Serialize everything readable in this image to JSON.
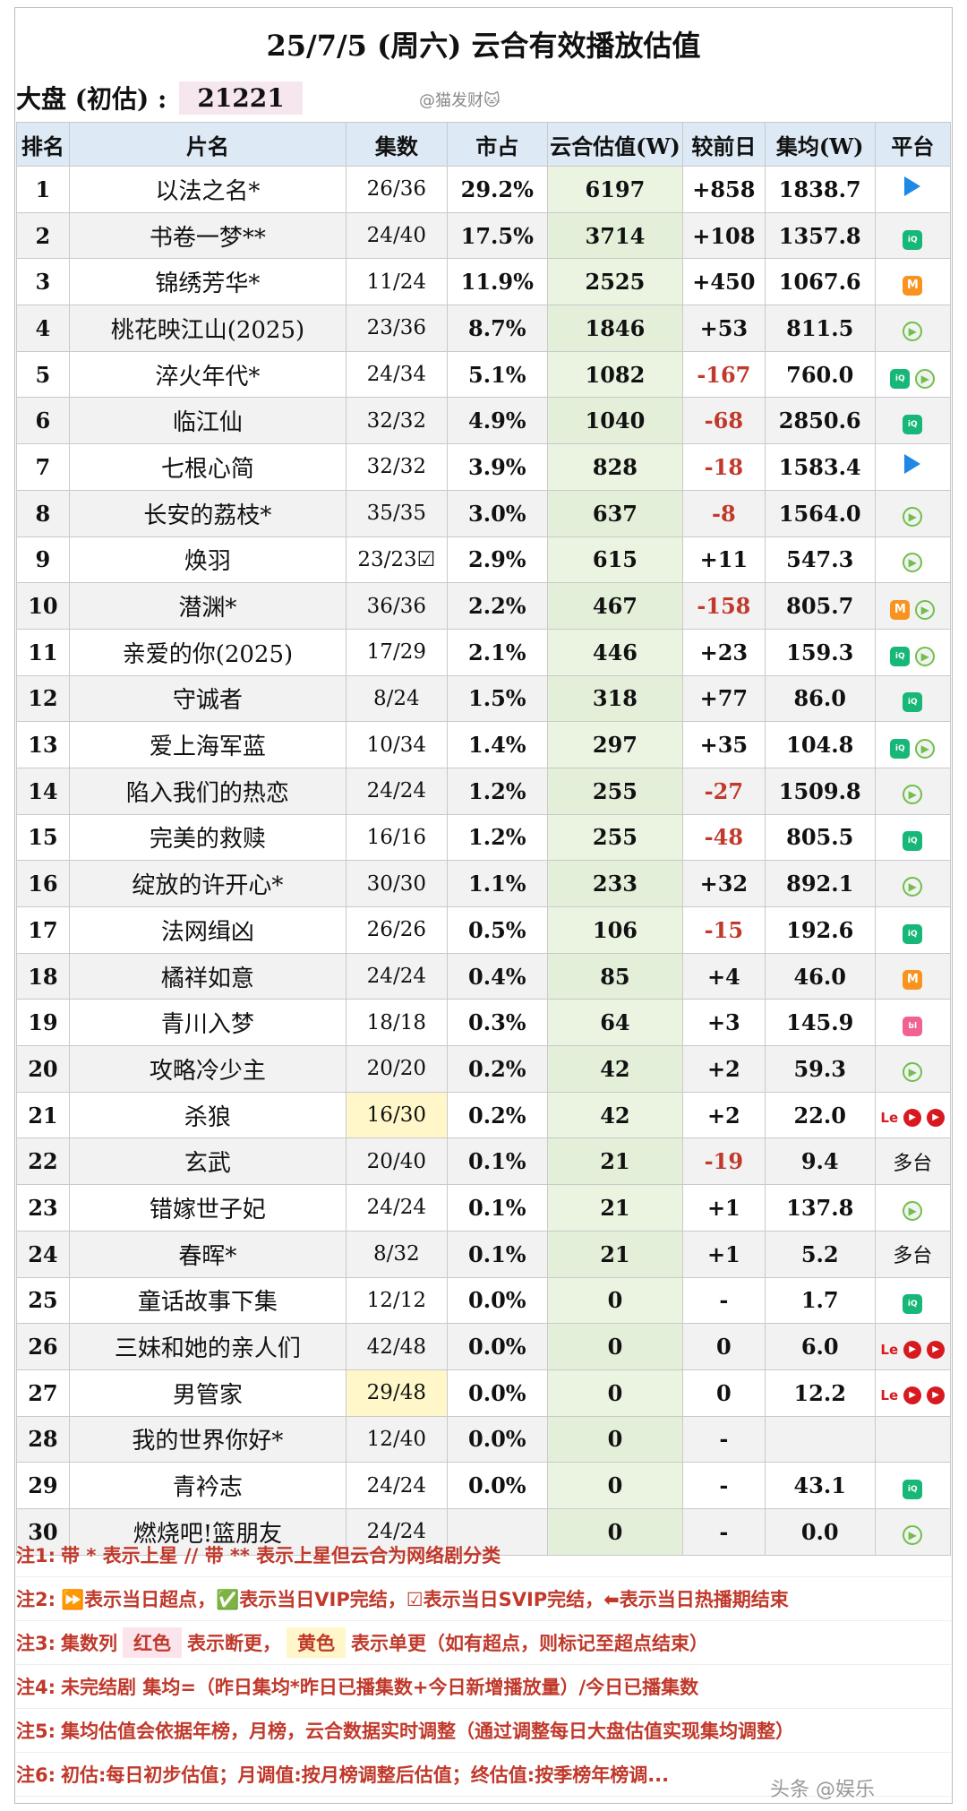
{
  "title": "25/7/5 (周六) 云合有效播放估值",
  "dapan": {
    "label": "大盘 (初估)  :",
    "value": "21221"
  },
  "watermark_top": "@猫发财🐱",
  "headers": [
    "排名",
    "片名",
    "集数",
    "市占",
    "云合估值(W)",
    "较前日",
    "集均(W)",
    "平台"
  ],
  "rows": [
    {
      "rank": "1",
      "name": "以法之名*",
      "eps": "26/36",
      "share": "29.2%",
      "est": "6197",
      "chg": "+858",
      "neg": false,
      "avg": "1838.7",
      "platforms": [
        "tencent"
      ]
    },
    {
      "rank": "2",
      "name": "书卷一梦**",
      "eps": "24/40",
      "share": "17.5%",
      "est": "3714",
      "chg": "+108",
      "neg": false,
      "avg": "1357.8",
      "platforms": [
        "iqiyi"
      ]
    },
    {
      "rank": "3",
      "name": "锦绣芳华*",
      "eps": "11/24",
      "share": "11.9%",
      "est": "2525",
      "chg": "+450",
      "neg": false,
      "avg": "1067.6",
      "platforms": [
        "mango"
      ]
    },
    {
      "rank": "4",
      "name": "桃花映江山(2025)",
      "eps": "23/36",
      "share": "8.7%",
      "est": "1846",
      "chg": "+53",
      "neg": false,
      "avg": "811.5",
      "platforms": [
        "youku"
      ]
    },
    {
      "rank": "5",
      "name": "淬火年代*",
      "eps": "24/34",
      "share": "5.1%",
      "est": "1082",
      "chg": "-167",
      "neg": true,
      "avg": "760.0",
      "platforms": [
        "iqiyi",
        "youku"
      ]
    },
    {
      "rank": "6",
      "name": "临江仙",
      "eps": "32/32",
      "share": "4.9%",
      "est": "1040",
      "chg": "-68",
      "neg": true,
      "avg": "2850.6",
      "platforms": [
        "iqiyi"
      ]
    },
    {
      "rank": "7",
      "name": "七根心简",
      "eps": "32/32",
      "share": "3.9%",
      "est": "828",
      "chg": "-18",
      "neg": true,
      "avg": "1583.4",
      "platforms": [
        "tencent"
      ]
    },
    {
      "rank": "8",
      "name": "长安的荔枝*",
      "eps": "35/35",
      "share": "3.0%",
      "est": "637",
      "chg": "-8",
      "neg": true,
      "avg": "1564.0",
      "platforms": [
        "youku"
      ]
    },
    {
      "rank": "9",
      "name": "焕羽",
      "eps": "23/23☑",
      "share": "2.9%",
      "est": "615",
      "chg": "+11",
      "neg": false,
      "avg": "547.3",
      "platforms": [
        "youku"
      ]
    },
    {
      "rank": "10",
      "name": "潜渊*",
      "eps": "36/36",
      "share": "2.2%",
      "est": "467",
      "chg": "-158",
      "neg": true,
      "avg": "805.7",
      "platforms": [
        "mango",
        "youku"
      ]
    },
    {
      "rank": "11",
      "name": "亲爱的你(2025)",
      "eps": "17/29",
      "share": "2.1%",
      "est": "446",
      "chg": "+23",
      "neg": false,
      "avg": "159.3",
      "platforms": [
        "iqiyi",
        "youku"
      ]
    },
    {
      "rank": "12",
      "name": "守诚者",
      "eps": "8/24",
      "share": "1.5%",
      "est": "318",
      "chg": "+77",
      "neg": false,
      "avg": "86.0",
      "platforms": [
        "iqiyi"
      ]
    },
    {
      "rank": "13",
      "name": "爱上海军蓝",
      "eps": "10/34",
      "share": "1.4%",
      "est": "297",
      "chg": "+35",
      "neg": false,
      "avg": "104.8",
      "platforms": [
        "iqiyi",
        "youku"
      ]
    },
    {
      "rank": "14",
      "name": "陷入我们的热恋",
      "eps": "24/24",
      "share": "1.2%",
      "est": "255",
      "chg": "-27",
      "neg": true,
      "avg": "1509.8",
      "platforms": [
        "youku"
      ]
    },
    {
      "rank": "15",
      "name": "完美的救赎",
      "eps": "16/16",
      "share": "1.2%",
      "est": "255",
      "chg": "-48",
      "neg": true,
      "avg": "805.5",
      "platforms": [
        "iqiyi"
      ]
    },
    {
      "rank": "16",
      "name": "绽放的许开心*",
      "eps": "30/30",
      "share": "1.1%",
      "est": "233",
      "chg": "+32",
      "neg": false,
      "avg": "892.1",
      "platforms": [
        "youku"
      ]
    },
    {
      "rank": "17",
      "name": "法网缉凶",
      "eps": "26/26",
      "share": "0.5%",
      "est": "106",
      "chg": "-15",
      "neg": true,
      "avg": "192.6",
      "platforms": [
        "iqiyi"
      ]
    },
    {
      "rank": "18",
      "name": "橘祥如意",
      "eps": "24/24",
      "share": "0.4%",
      "est": "85",
      "chg": "+4",
      "neg": false,
      "avg": "46.0",
      "platforms": [
        "mango"
      ]
    },
    {
      "rank": "19",
      "name": "青川入梦",
      "eps": "18/18",
      "share": "0.3%",
      "est": "64",
      "chg": "+3",
      "neg": false,
      "avg": "145.9",
      "platforms": [
        "bili"
      ]
    },
    {
      "rank": "20",
      "name": "攻略冷少主",
      "eps": "20/20",
      "share": "0.2%",
      "est": "42",
      "chg": "+2",
      "neg": false,
      "avg": "59.3",
      "platforms": [
        "youku"
      ]
    },
    {
      "rank": "21",
      "name": "杀狼",
      "eps": "16/30",
      "eps_hl": true,
      "share": "0.2%",
      "est": "42",
      "chg": "+2",
      "neg": false,
      "avg": "22.0",
      "platforms": [
        "le",
        "red",
        "red"
      ]
    },
    {
      "rank": "22",
      "name": "玄武",
      "eps": "20/40",
      "share": "0.1%",
      "est": "21",
      "chg": "-19",
      "neg": true,
      "avg": "9.4",
      "platforms": [],
      "platform_text": "多台"
    },
    {
      "rank": "23",
      "name": "错嫁世子妃",
      "eps": "24/24",
      "share": "0.1%",
      "est": "21",
      "chg": "+1",
      "neg": false,
      "avg": "137.8",
      "platforms": [
        "youku"
      ]
    },
    {
      "rank": "24",
      "name": "春晖*",
      "eps": "8/32",
      "share": "0.1%",
      "est": "21",
      "chg": "+1",
      "neg": false,
      "avg": "5.2",
      "platforms": [],
      "platform_text": "多台"
    },
    {
      "rank": "25",
      "name": "童话故事下集",
      "eps": "12/12",
      "share": "0.0%",
      "est": "0",
      "chg": "-",
      "neg": false,
      "avg": "1.7",
      "platforms": [
        "iqiyi"
      ]
    },
    {
      "rank": "26",
      "name": "三妹和她的亲人们",
      "eps": "42/48",
      "share": "0.0%",
      "est": "0",
      "chg": "0",
      "neg": false,
      "avg": "6.0",
      "platforms": [
        "le",
        "red",
        "red"
      ]
    },
    {
      "rank": "27",
      "name": "男管家",
      "eps": "29/48",
      "eps_hl": true,
      "share": "0.0%",
      "est": "0",
      "chg": "0",
      "neg": false,
      "avg": "12.2",
      "platforms": [
        "le",
        "red",
        "red"
      ]
    },
    {
      "rank": "28",
      "name": "我的世界你好*",
      "eps": "12/40",
      "share": "0.0%",
      "est": "0",
      "chg": "-",
      "neg": false,
      "avg": "",
      "platforms": []
    },
    {
      "rank": "29",
      "name": "青衿志",
      "eps": "24/24",
      "share": "0.0%",
      "est": "0",
      "chg": "-",
      "neg": false,
      "avg": "43.1",
      "platforms": [
        "iqiyi"
      ]
    },
    {
      "rank": "30",
      "name": "燃烧吧!篮朋友",
      "eps": "24/24",
      "share": "",
      "est": "0",
      "chg": "-",
      "neg": false,
      "avg": "0.0",
      "platforms": [
        "youku"
      ]
    }
  ],
  "notes": {
    "n1": {
      "label": "注1:",
      "text": "带 * 表示上星 // 带 ** 表示上星但云合为网络剧分类"
    },
    "n2": {
      "label": "注2:",
      "text": "⏩表示当日超点，✅表示当日VIP完结，☑表示当日SVIP完结，⬅表示当日热播期结束"
    },
    "n3": {
      "label": "注3:",
      "a": "集数列",
      "b": "红色",
      "c": "表示断更，",
      "d": "黄色",
      "e": "表示单更（如有超点，则标记至超点结束）"
    },
    "n4": {
      "label": "注4:",
      "text": "未完结剧 集均=（昨日集均*昨日已播集数+今日新增播放量）/今日已播集数"
    },
    "n5": {
      "label": "注5:",
      "text": "集均估值会依据年榜，月榜，云合数据实时调整（通过调整每日大盘估值实现集均调整）"
    },
    "n6": {
      "label": "注6:",
      "text": "初估:每日初步估值；月调值:按月榜调整后估值；终估值:按季榜年榜调..."
    }
  },
  "watermark_bottom": "头条 @娱乐"
}
